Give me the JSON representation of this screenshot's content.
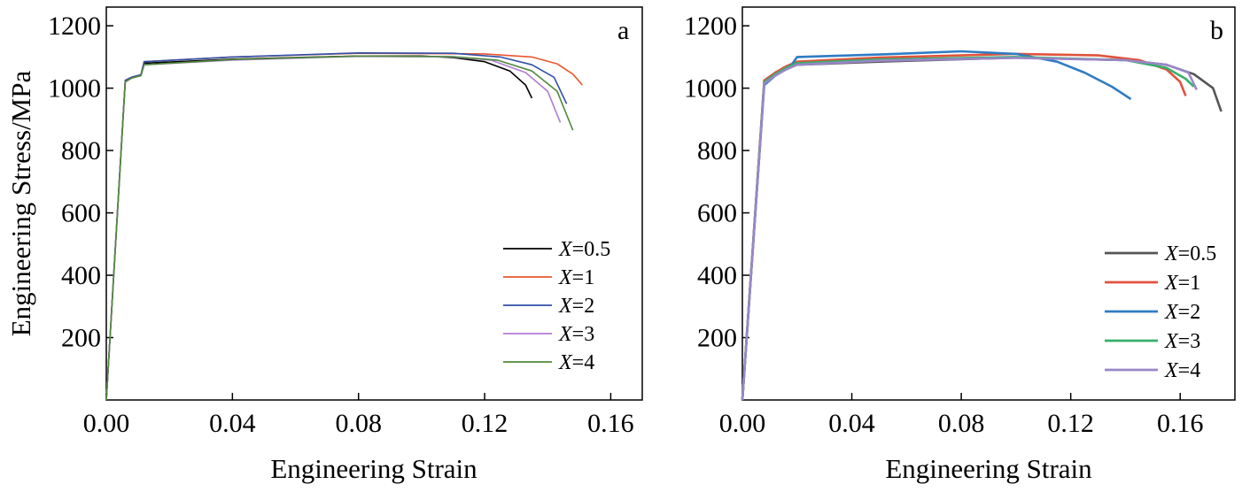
{
  "chart_data": [
    {
      "type": "line",
      "panel_label": "a",
      "xlabel": "Engineering Strain",
      "ylabel": "Engineering Stress/MPa",
      "xlim": [
        0,
        0.17
      ],
      "ylim": [
        0,
        1260
      ],
      "xticks": [
        0,
        0.04,
        0.08,
        0.12,
        0.16
      ],
      "xtick_labels": [
        "0.00",
        "0.04",
        "0.08",
        "0.12",
        "0.16"
      ],
      "yticks": [
        200,
        400,
        600,
        800,
        1000,
        1200
      ],
      "ytick_labels": [
        "200",
        "400",
        "600",
        "800",
        "1000",
        "1200"
      ],
      "legend_position": "lower-right",
      "series": [
        {
          "name": "X=0.5",
          "var": "X",
          "val": "=0.5",
          "color": "#000000",
          "points": [
            [
              0,
              0
            ],
            [
              0.006,
              1025
            ],
            [
              0.008,
              1035
            ],
            [
              0.011,
              1043
            ],
            [
              0.012,
              1080
            ],
            [
              0.04,
              1093
            ],
            [
              0.08,
              1103
            ],
            [
              0.1,
              1103
            ],
            [
              0.11,
              1098
            ],
            [
              0.12,
              1085
            ],
            [
              0.128,
              1055
            ],
            [
              0.133,
              1010
            ],
            [
              0.135,
              968
            ]
          ]
        },
        {
          "name": "X=1",
          "var": "X",
          "val": "=1",
          "color": "#e8562f",
          "points": [
            [
              0,
              0
            ],
            [
              0.006,
              1025
            ],
            [
              0.008,
              1035
            ],
            [
              0.011,
              1043
            ],
            [
              0.012,
              1085
            ],
            [
              0.04,
              1100
            ],
            [
              0.08,
              1112
            ],
            [
              0.12,
              1110
            ],
            [
              0.135,
              1100
            ],
            [
              0.143,
              1078
            ],
            [
              0.148,
              1045
            ],
            [
              0.151,
              1010
            ]
          ]
        },
        {
          "name": "X=2",
          "var": "X",
          "val": "=2",
          "color": "#2f4fa8",
          "points": [
            [
              0,
              0
            ],
            [
              0.006,
              1025
            ],
            [
              0.008,
              1035
            ],
            [
              0.011,
              1043
            ],
            [
              0.012,
              1085
            ],
            [
              0.04,
              1100
            ],
            [
              0.08,
              1113
            ],
            [
              0.11,
              1112
            ],
            [
              0.125,
              1100
            ],
            [
              0.135,
              1075
            ],
            [
              0.142,
              1035
            ],
            [
              0.146,
              950
            ]
          ]
        },
        {
          "name": "X=3",
          "var": "X",
          "val": "=3",
          "color": "#b07cd6",
          "points": [
            [
              0,
              0
            ],
            [
              0.006,
              1020
            ],
            [
              0.008,
              1032
            ],
            [
              0.011,
              1040
            ],
            [
              0.012,
              1075
            ],
            [
              0.04,
              1090
            ],
            [
              0.08,
              1102
            ],
            [
              0.11,
              1100
            ],
            [
              0.122,
              1090
            ],
            [
              0.133,
              1050
            ],
            [
              0.14,
              990
            ],
            [
              0.144,
              890
            ]
          ]
        },
        {
          "name": "X=4",
          "var": "X",
          "val": "=4",
          "color": "#4f8a3a",
          "points": [
            [
              0,
              0
            ],
            [
              0.006,
              1020
            ],
            [
              0.008,
              1032
            ],
            [
              0.011,
              1040
            ],
            [
              0.012,
              1075
            ],
            [
              0.04,
              1092
            ],
            [
              0.08,
              1103
            ],
            [
              0.11,
              1101
            ],
            [
              0.124,
              1090
            ],
            [
              0.135,
              1055
            ],
            [
              0.143,
              990
            ],
            [
              0.148,
              865
            ]
          ]
        }
      ]
    },
    {
      "type": "line",
      "panel_label": "b",
      "xlabel": "Engineering Strain",
      "ylabel": "",
      "xlim": [
        0,
        0.18
      ],
      "ylim": [
        0,
        1260
      ],
      "xticks": [
        0,
        0.04,
        0.08,
        0.12,
        0.16
      ],
      "xtick_labels": [
        "0.00",
        "0.04",
        "0.08",
        "0.12",
        "0.16"
      ],
      "yticks": [
        200,
        400,
        600,
        800,
        1000,
        1200
      ],
      "ytick_labels": [
        "200",
        "400",
        "600",
        "800",
        "1000",
        "1200"
      ],
      "legend_position": "lower-right",
      "series": [
        {
          "name": "X=0.5",
          "var": "X",
          "val": "=0.5",
          "color": "#555555",
          "points": [
            [
              0,
              0
            ],
            [
              0.008,
              1020
            ],
            [
              0.012,
              1045
            ],
            [
              0.015,
              1065
            ],
            [
              0.02,
              1075
            ],
            [
              0.05,
              1085
            ],
            [
              0.1,
              1098
            ],
            [
              0.14,
              1090
            ],
            [
              0.155,
              1075
            ],
            [
              0.165,
              1045
            ],
            [
              0.172,
              1000
            ],
            [
              0.175,
              925
            ]
          ]
        },
        {
          "name": "X=1",
          "var": "X",
          "val": "=1",
          "color": "#e0533c",
          "points": [
            [
              0,
              0
            ],
            [
              0.008,
              1025
            ],
            [
              0.012,
              1050
            ],
            [
              0.016,
              1070
            ],
            [
              0.02,
              1085
            ],
            [
              0.05,
              1098
            ],
            [
              0.1,
              1110
            ],
            [
              0.13,
              1105
            ],
            [
              0.145,
              1090
            ],
            [
              0.155,
              1060
            ],
            [
              0.16,
              1020
            ],
            [
              0.162,
              975
            ]
          ]
        },
        {
          "name": "X=2",
          "var": "X",
          "val": "=2",
          "color": "#2f7cc4",
          "points": [
            [
              0,
              0
            ],
            [
              0.008,
              1010
            ],
            [
              0.012,
              1040
            ],
            [
              0.018,
              1075
            ],
            [
              0.02,
              1100
            ],
            [
              0.05,
              1108
            ],
            [
              0.08,
              1118
            ],
            [
              0.1,
              1110
            ],
            [
              0.115,
              1085
            ],
            [
              0.125,
              1050
            ],
            [
              0.135,
              1005
            ],
            [
              0.142,
              965
            ]
          ]
        },
        {
          "name": "X=3",
          "var": "X",
          "val": "=3",
          "color": "#37b06a",
          "points": [
            [
              0,
              0
            ],
            [
              0.008,
              1020
            ],
            [
              0.012,
              1045
            ],
            [
              0.016,
              1065
            ],
            [
              0.02,
              1080
            ],
            [
              0.05,
              1092
            ],
            [
              0.1,
              1100
            ],
            [
              0.14,
              1090
            ],
            [
              0.155,
              1065
            ],
            [
              0.162,
              1030
            ],
            [
              0.165,
              1005
            ]
          ]
        },
        {
          "name": "X=4",
          "var": "X",
          "val": "=4",
          "color": "#9a86c8",
          "points": [
            [
              0,
              0
            ],
            [
              0.008,
              1015
            ],
            [
              0.012,
              1040
            ],
            [
              0.016,
              1060
            ],
            [
              0.02,
              1075
            ],
            [
              0.05,
              1088
            ],
            [
              0.1,
              1097
            ],
            [
              0.14,
              1090
            ],
            [
              0.155,
              1075
            ],
            [
              0.163,
              1050
            ],
            [
              0.166,
              995
            ]
          ]
        }
      ]
    }
  ]
}
